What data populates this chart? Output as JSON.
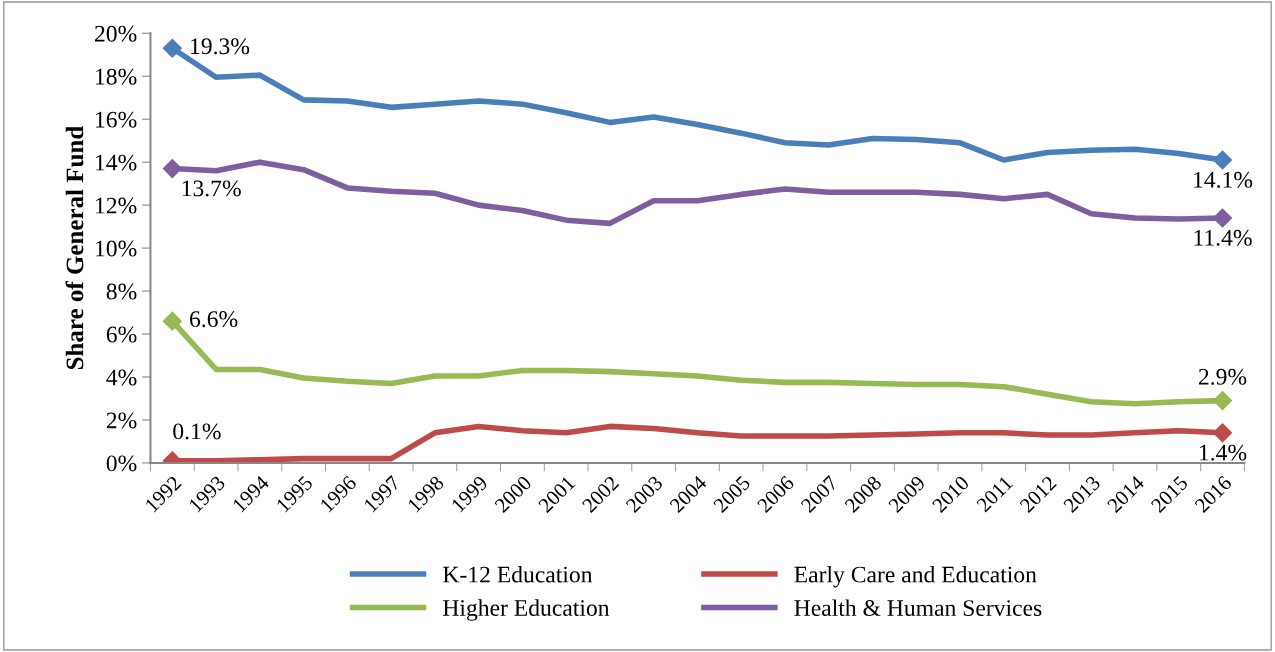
{
  "chart_data": {
    "type": "line",
    "ylabel": "Share of General Fund",
    "categories": [
      "1992",
      "1993",
      "1994",
      "1995",
      "1996",
      "1997",
      "1998",
      "1999",
      "2000",
      "2001",
      "2002",
      "2003",
      "2004",
      "2005",
      "2006",
      "2007",
      "2008",
      "2009",
      "2010",
      "2011",
      "2012",
      "2013",
      "2014",
      "2015",
      "2016"
    ],
    "series": [
      {
        "name": "K-12 Education",
        "color": "#4a7ebb",
        "values": [
          19.3,
          17.95,
          18.05,
          16.9,
          16.85,
          16.55,
          16.7,
          16.85,
          16.7,
          16.3,
          15.85,
          16.1,
          15.75,
          15.35,
          14.9,
          14.8,
          15.1,
          15.05,
          14.9,
          14.1,
          14.45,
          14.55,
          14.6,
          14.4,
          14.1
        ],
        "value_labels": [
          "19.3%",
          null,
          null,
          null,
          null,
          null,
          null,
          null,
          null,
          null,
          null,
          null,
          null,
          null,
          null,
          null,
          null,
          null,
          null,
          null,
          null,
          null,
          null,
          null,
          "14.1%"
        ]
      },
      {
        "name": "Early Care and Education",
        "color": "#be4b48",
        "values": [
          0.1,
          0.1,
          0.15,
          0.2,
          0.2,
          0.2,
          1.4,
          1.7,
          1.5,
          1.4,
          1.7,
          1.6,
          1.4,
          1.25,
          1.25,
          1.25,
          1.3,
          1.35,
          1.4,
          1.4,
          1.3,
          1.3,
          1.4,
          1.5,
          1.4
        ],
        "value_labels": [
          "0.1%",
          null,
          null,
          null,
          null,
          null,
          null,
          null,
          null,
          null,
          null,
          null,
          null,
          null,
          null,
          null,
          null,
          null,
          null,
          null,
          null,
          null,
          null,
          null,
          "1.4%"
        ]
      },
      {
        "name": "Higher Education",
        "color": "#98b954",
        "values": [
          6.6,
          4.35,
          4.35,
          3.95,
          3.8,
          3.7,
          4.05,
          4.05,
          4.3,
          4.3,
          4.25,
          4.15,
          4.05,
          3.85,
          3.75,
          3.75,
          3.7,
          3.65,
          3.65,
          3.55,
          3.2,
          2.85,
          2.75,
          2.85,
          2.9
        ],
        "value_labels": [
          "6.6%",
          null,
          null,
          null,
          null,
          null,
          null,
          null,
          null,
          null,
          null,
          null,
          null,
          null,
          null,
          null,
          null,
          null,
          null,
          null,
          null,
          null,
          null,
          null,
          "2.9%"
        ]
      },
      {
        "name": "Health & Human Services",
        "color": "#7d5fa0",
        "values": [
          13.7,
          13.6,
          14.0,
          13.65,
          12.8,
          12.65,
          12.55,
          12.0,
          11.75,
          11.3,
          11.15,
          12.2,
          12.2,
          12.5,
          12.75,
          12.6,
          12.6,
          12.6,
          12.5,
          12.3,
          12.5,
          11.6,
          11.4,
          11.35,
          11.4
        ],
        "value_labels": [
          "13.7%",
          null,
          null,
          null,
          null,
          null,
          null,
          null,
          null,
          null,
          null,
          null,
          null,
          null,
          null,
          null,
          null,
          null,
          null,
          null,
          null,
          null,
          null,
          null,
          "11.4%"
        ]
      }
    ],
    "ylim": [
      0,
      20
    ],
    "yticks": [
      {
        "value": 0,
        "label": "0%"
      },
      {
        "value": 2,
        "label": "2%"
      },
      {
        "value": 4,
        "label": "4%"
      },
      {
        "value": 6,
        "label": "6%"
      },
      {
        "value": 8,
        "label": "8%"
      },
      {
        "value": 10,
        "label": "10%"
      },
      {
        "value": 12,
        "label": "12%"
      },
      {
        "value": 14,
        "label": "14%"
      },
      {
        "value": 16,
        "label": "16%"
      },
      {
        "value": 18,
        "label": "18%"
      },
      {
        "value": 20,
        "label": "20%"
      }
    ],
    "grid": false,
    "legend": "bottom",
    "line_style": "solid"
  }
}
